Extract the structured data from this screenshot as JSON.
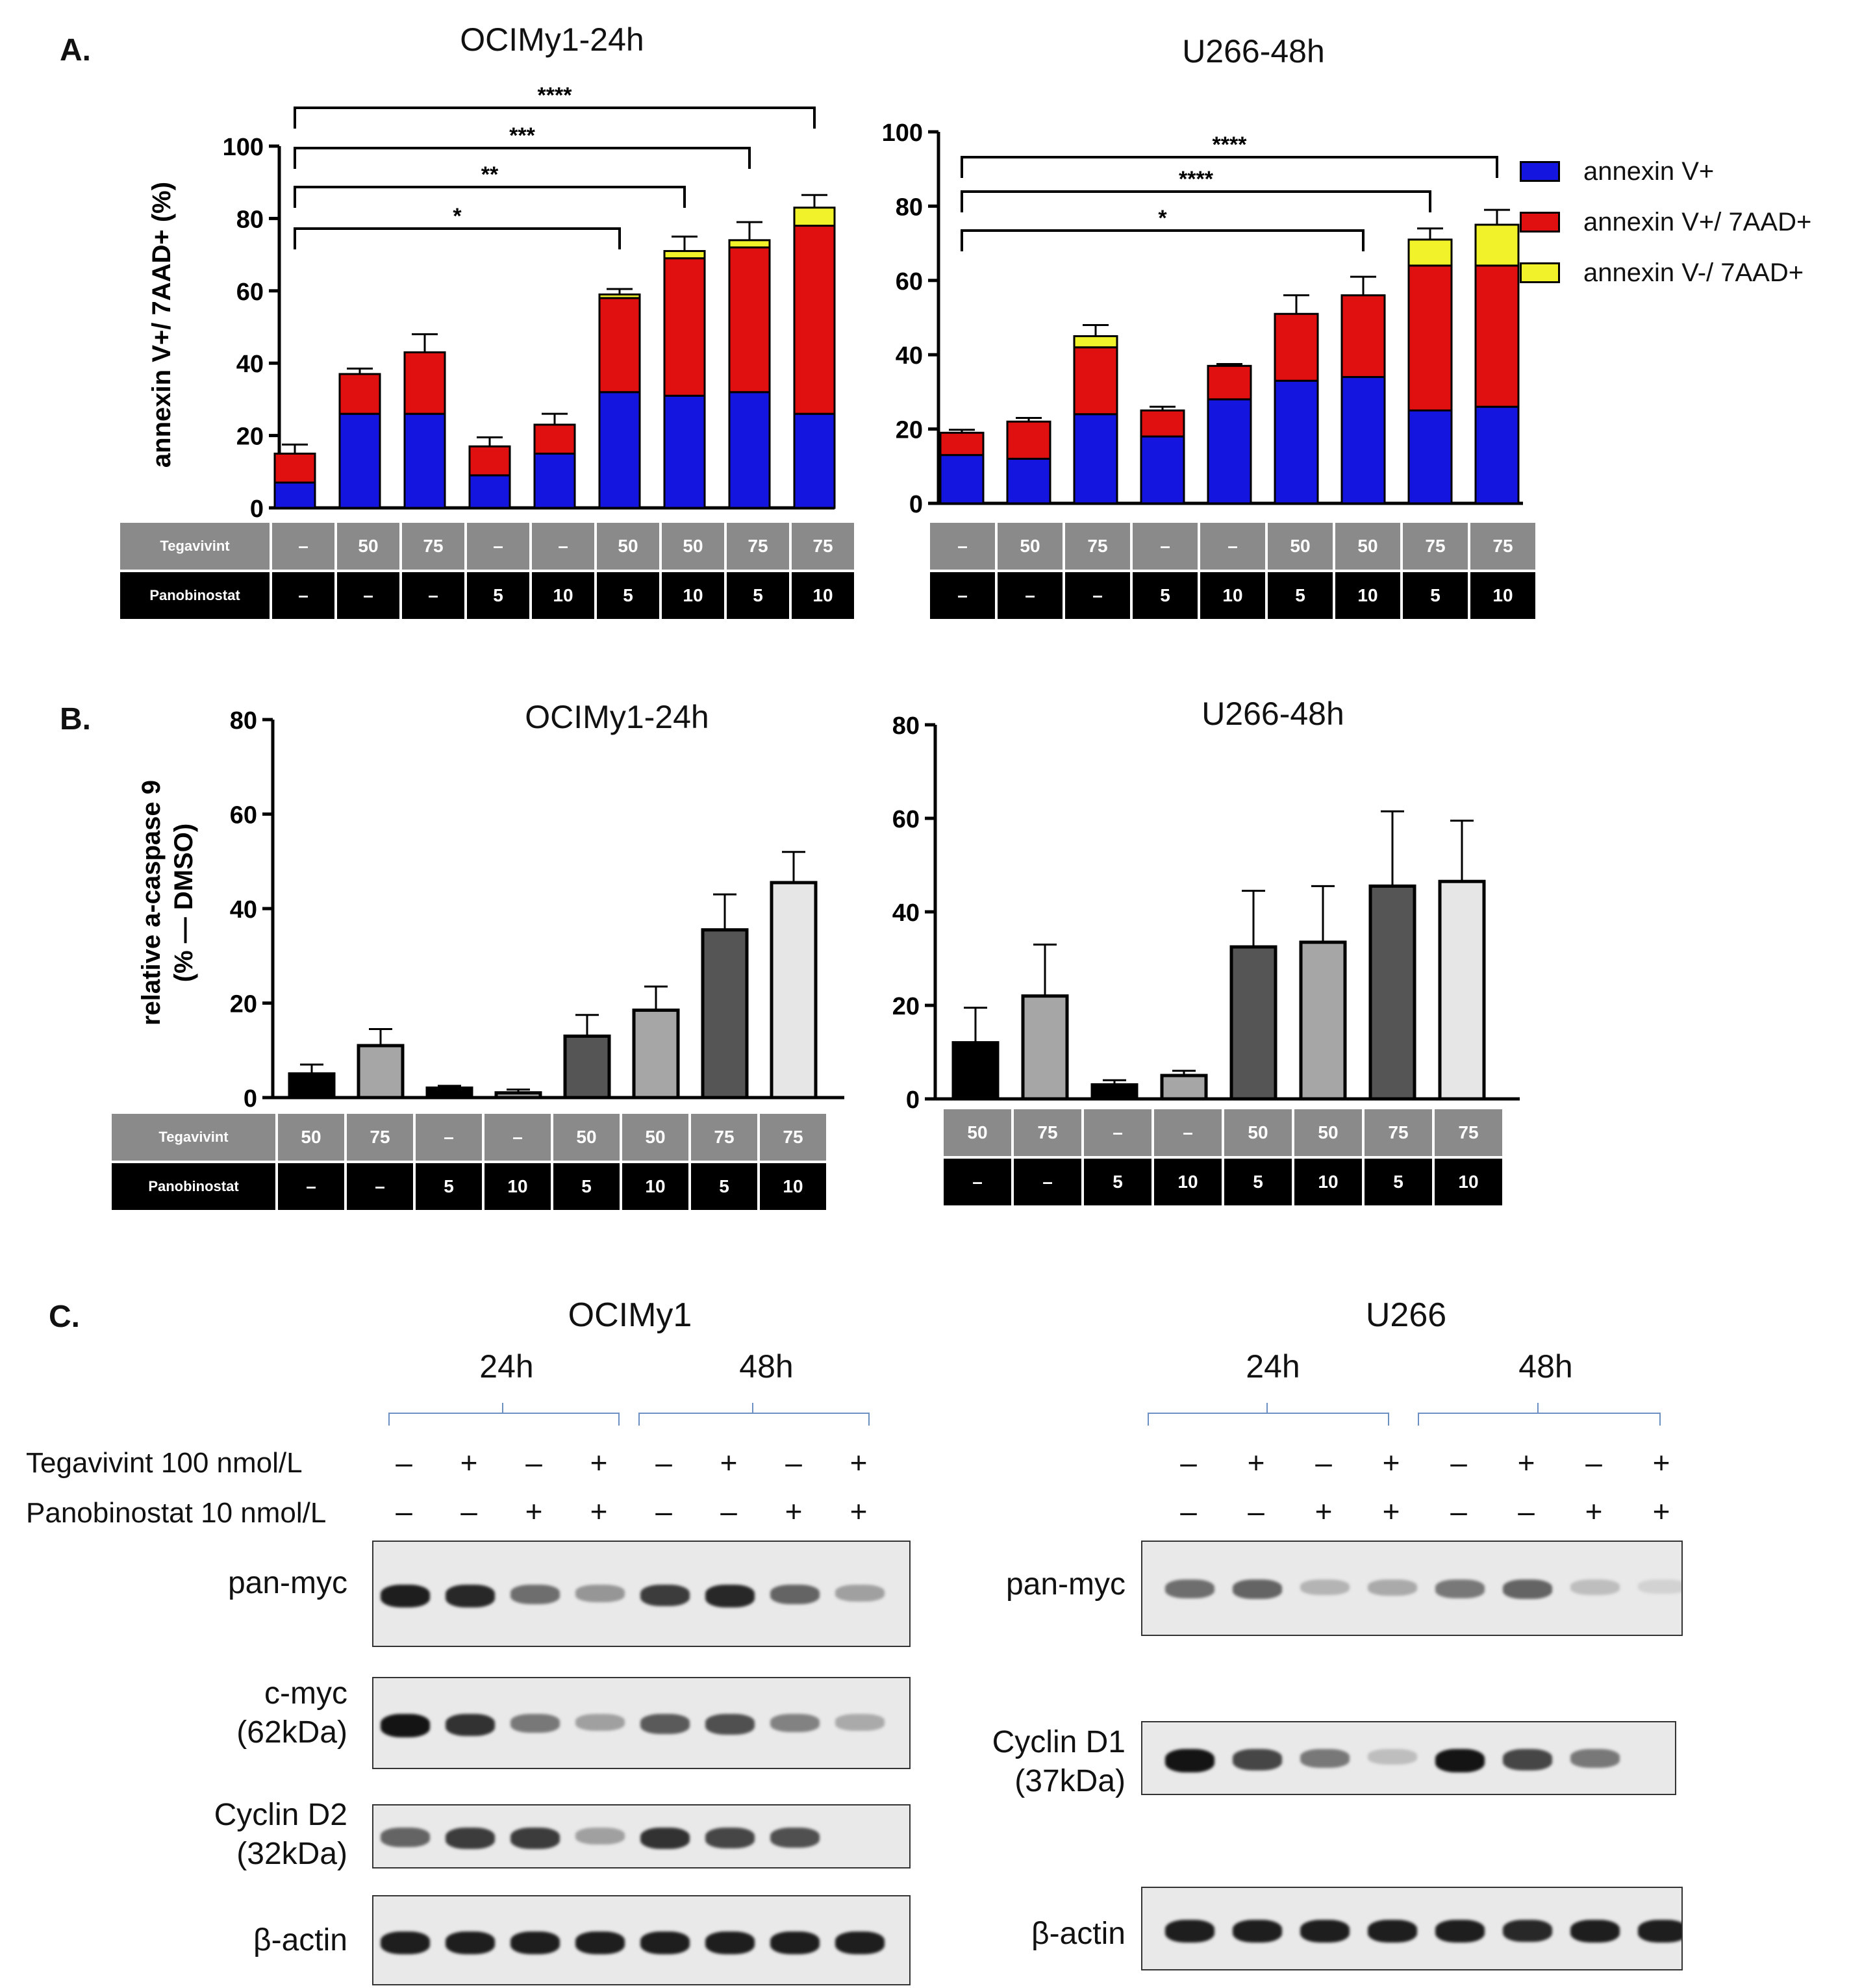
{
  "panels": {
    "A": {
      "letter": "A.",
      "legend": [
        {
          "label": "annexin V+",
          "color": "#1515e0"
        },
        {
          "label": "annexin V+/ 7AAD+",
          "color": "#e01010"
        },
        {
          "label": "annexin V-/ 7AAD+",
          "color": "#f2f22a"
        }
      ],
      "table_labels": {
        "row1": "Tegavivint",
        "row2": "Panobinostat"
      },
      "ocimy": {
        "tegavivint": [
          "–",
          "50",
          "75",
          "–",
          "–",
          "50",
          "50",
          "75",
          "75"
        ],
        "panobinostat": [
          "–",
          "–",
          "–",
          "5",
          "10",
          "5",
          "10",
          "5",
          "10"
        ]
      },
      "u266": {
        "tegavivint": [
          "–",
          "50",
          "75",
          "–",
          "–",
          "50",
          "50",
          "75",
          "75"
        ],
        "panobinostat": [
          "–",
          "–",
          "–",
          "5",
          "10",
          "5",
          "10",
          "5",
          "10"
        ]
      }
    },
    "B": {
      "letter": "B.",
      "table_labels": {
        "row1": "Tegavivint",
        "row2": "Panobinostat"
      },
      "ocimy": {
        "tegavivint": [
          "50",
          "75",
          "–",
          "–",
          "50",
          "50",
          "75",
          "75"
        ],
        "panobinostat": [
          "–",
          "–",
          "5",
          "10",
          "5",
          "10",
          "5",
          "10"
        ]
      },
      "u266": {
        "tegavivint": [
          "50",
          "75",
          "–",
          "–",
          "50",
          "50",
          "75",
          "75"
        ],
        "panobinostat": [
          "–",
          "–",
          "5",
          "10",
          "5",
          "10",
          "5",
          "10"
        ]
      }
    },
    "C": {
      "letter": "C.",
      "ocimy_title": "OCIMy1",
      "u266_title": "U266",
      "time_24": "24h",
      "time_48": "48h",
      "row_tegavivint": "Tegavivint 100 nmol/L",
      "row_panobinostat": "Panobinostat 10 nmol/L",
      "tegavivint_signs": [
        "–",
        "+",
        "–",
        "+",
        "–",
        "+",
        "–",
        "+"
      ],
      "panobinostat_signs": [
        "–",
        "–",
        "+",
        "+",
        "–",
        "–",
        "+",
        "+"
      ],
      "ocimy_blots": [
        {
          "label1": "pan-myc",
          "label2": "",
          "intensity": [
            0.95,
            0.9,
            0.55,
            0.35,
            0.8,
            0.9,
            0.6,
            0.3
          ]
        },
        {
          "label1": "c-myc",
          "label2": "(62kDa)",
          "intensity": [
            1.0,
            0.85,
            0.5,
            0.3,
            0.65,
            0.7,
            0.45,
            0.25
          ]
        },
        {
          "label1": "Cyclin D2",
          "label2": "(32kDa)",
          "intensity": [
            0.6,
            0.8,
            0.8,
            0.3,
            0.85,
            0.75,
            0.7,
            0.0
          ]
        },
        {
          "label1": "β-actin",
          "label2": "",
          "intensity": [
            0.95,
            0.95,
            0.95,
            0.95,
            0.95,
            0.95,
            0.95,
            0.95
          ]
        }
      ],
      "u266_blots": [
        {
          "label1": "pan-myc",
          "label2": "",
          "intensity": [
            0.55,
            0.6,
            0.2,
            0.25,
            0.5,
            0.6,
            0.15,
            0.05
          ]
        },
        {
          "label1": "Cyclin D1",
          "label2": "(37kDa)",
          "intensity": [
            1.0,
            0.75,
            0.5,
            0.15,
            1.0,
            0.75,
            0.5,
            0.0
          ]
        },
        {
          "label1": "β-actin",
          "label2": "",
          "intensity": [
            0.95,
            0.95,
            0.95,
            0.95,
            0.95,
            0.9,
            0.95,
            0.95
          ]
        }
      ]
    }
  },
  "chart_data": [
    {
      "type": "bar",
      "stacked": true,
      "title": "OCIMy1-24h",
      "ylabel": "annexin V+/ 7AAD+ (%)",
      "ylim": [
        0,
        100
      ],
      "yticks": [
        0,
        20,
        40,
        60,
        80,
        100
      ],
      "categories": [
        "1",
        "2",
        "3",
        "4",
        "5",
        "6",
        "7",
        "8",
        "9"
      ],
      "series": [
        {
          "name": "annexin V+",
          "values": [
            7,
            26,
            26,
            9,
            15,
            32,
            31,
            32,
            26
          ]
        },
        {
          "name": "annexin V+/ 7AAD+",
          "values": [
            8,
            11,
            17,
            8,
            8,
            26,
            38,
            40,
            52
          ]
        },
        {
          "name": "annexin V-/ 7AAD+",
          "values": [
            0,
            0,
            0,
            0,
            0,
            1,
            2,
            2,
            5
          ]
        }
      ],
      "errors": [
        2.5,
        1.5,
        5,
        2.5,
        3,
        1.5,
        4,
        5,
        3.5
      ],
      "brackets": [
        {
          "from": 1,
          "to": 9,
          "label": "****"
        },
        {
          "from": 1,
          "to": 8,
          "label": "***"
        },
        {
          "from": 1,
          "to": 7,
          "label": "**"
        },
        {
          "from": 1,
          "to": 6,
          "label": "*"
        }
      ]
    },
    {
      "type": "bar",
      "stacked": true,
      "title": "U266-48h",
      "ylim": [
        0,
        100
      ],
      "yticks": [
        0,
        20,
        40,
        60,
        80,
        100
      ],
      "categories": [
        "1",
        "2",
        "3",
        "4",
        "5",
        "6",
        "7",
        "8",
        "9"
      ],
      "series": [
        {
          "name": "annexin V+",
          "values": [
            13,
            12,
            24,
            18,
            28,
            33,
            34,
            25,
            26
          ]
        },
        {
          "name": "annexin V+/ 7AAD+",
          "values": [
            6,
            10,
            18,
            7,
            9,
            18,
            22,
            39,
            38
          ]
        },
        {
          "name": "annexin V-/ 7AAD+",
          "values": [
            0,
            0,
            3,
            0,
            0,
            0,
            0,
            7,
            11
          ]
        }
      ],
      "errors": [
        0.8,
        1,
        3,
        1,
        0.5,
        5,
        5,
        3,
        4
      ],
      "brackets": [
        {
          "from": 1,
          "to": 9,
          "label": "****"
        },
        {
          "from": 1,
          "to": 8,
          "label": "****"
        },
        {
          "from": 1,
          "to": 7,
          "label": "*"
        }
      ]
    },
    {
      "type": "bar",
      "title": "OCIMy1-24h",
      "ylabel": "relative a-caspase 9",
      "ylabel2": "(% — DMSO)",
      "ylim": [
        0,
        80
      ],
      "yticks": [
        0,
        20,
        40,
        60,
        80
      ],
      "categories": [
        "1",
        "2",
        "3",
        "4",
        "5",
        "6",
        "7",
        "8"
      ],
      "values": [
        5,
        11,
        2,
        1,
        13,
        18.5,
        35.5,
        45.5
      ],
      "errors": [
        2,
        3.5,
        0.5,
        0.7,
        4.5,
        5,
        7.5,
        6.5
      ],
      "colors": [
        "#000000",
        "#a6a6a6",
        "#000000",
        "#a6a6a6",
        "#555555",
        "#a6a6a6",
        "#555555",
        "#e6e6e6"
      ]
    },
    {
      "type": "bar",
      "title": "U266-48h",
      "ylim": [
        0,
        80
      ],
      "yticks": [
        0,
        20,
        40,
        60,
        80
      ],
      "categories": [
        "1",
        "2",
        "3",
        "4",
        "5",
        "6",
        "7",
        "8"
      ],
      "values": [
        12,
        22,
        3,
        5,
        32.5,
        33.5,
        45.5,
        46.5
      ],
      "errors": [
        7.5,
        11,
        1,
        1,
        12,
        12,
        16,
        13
      ],
      "colors": [
        "#000000",
        "#a6a6a6",
        "#000000",
        "#a6a6a6",
        "#555555",
        "#a6a6a6",
        "#555555",
        "#e6e6e6"
      ]
    }
  ]
}
